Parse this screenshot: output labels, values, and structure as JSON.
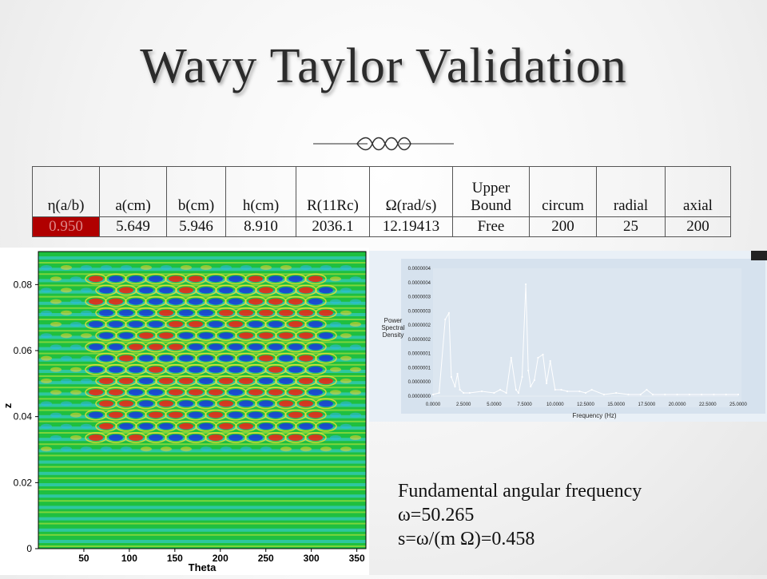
{
  "slide": {
    "title": "Wavy Taylor Validation"
  },
  "table": {
    "headers": [
      "η(a/b)",
      "a(cm)",
      "b(cm)",
      "h(cm)",
      "R(11Rc)",
      "Ω(rad/s)",
      "Upper Bound",
      "circum",
      "radial",
      "axial"
    ],
    "values": [
      "0.950",
      "5.649",
      "5.946",
      "8.910",
      "2036.1",
      "12.19413",
      "Free",
      "200",
      "25",
      "200"
    ],
    "highlight_color": "#b00000"
  },
  "contour_plot": {
    "xlabel": "Theta",
    "ylabel": "z",
    "xticks": [
      "50",
      "100",
      "150",
      "200",
      "250",
      "300",
      "350"
    ],
    "yticks": [
      "0",
      "0.02",
      "0.04",
      "0.06",
      "0.08"
    ]
  },
  "chart_data": {
    "type": "line",
    "title": "",
    "xlabel": "Frequency (Hz)",
    "ylabel": "Power Spectral Density",
    "xlim": [
      0,
      25
    ],
    "ylim": [
      0,
      4e-07
    ],
    "xticks": [
      "0.0000",
      "2.5000",
      "5.0000",
      "7.5000",
      "10.0000",
      "12.5000",
      "15.0000",
      "17.5000",
      "20.0000",
      "22.5000",
      "25.0000"
    ],
    "yticks": [
      "0.0000000",
      "0.0000000",
      "0.0000001",
      "0.0000001",
      "0.0000002",
      "0.0000002",
      "0.0000003",
      "0.0000003",
      "0.0000004",
      "0.0000004"
    ],
    "x": [
      0,
      0.5,
      1.0,
      1.3,
      1.5,
      1.8,
      2.0,
      2.2,
      2.5,
      3.0,
      4.0,
      5.0,
      5.5,
      6.0,
      6.4,
      6.8,
      7.0,
      7.3,
      7.6,
      7.8,
      8.0,
      8.3,
      8.6,
      9.0,
      9.3,
      9.6,
      10.0,
      10.5,
      11.0,
      12.0,
      12.5,
      13.0,
      14.0,
      15.0,
      16.0,
      17.0,
      17.5,
      18.0,
      19.0,
      20.0,
      21.0,
      22.0,
      23.0,
      24.0,
      25.0
    ],
    "y": [
      5e-09,
      1e-08,
      2.4e-07,
      2.6e-07,
      6e-08,
      3e-08,
      7e-08,
      2e-08,
      1e-08,
      1e-08,
      1.5e-08,
      1e-08,
      2e-08,
      1e-08,
      1.2e-07,
      2e-08,
      1e-08,
      6e-08,
      3.5e-07,
      8e-08,
      3e-08,
      5e-08,
      1.2e-07,
      1.3e-07,
      4e-08,
      1.1e-07,
      2e-08,
      2e-08,
      1.5e-08,
      1.5e-08,
      1e-08,
      2e-08,
      5e-09,
      1e-08,
      5e-09,
      5e-09,
      2e-08,
      5e-09,
      5e-09,
      5e-09,
      5e-09,
      5e-09,
      5e-09,
      5e-09,
      5e-09
    ],
    "series_color": "#ffffff",
    "background": "#2d4d96",
    "grid": false
  },
  "caption": {
    "line1": "Fundamental angular frequency",
    "line2": "ω=50.265",
    "line3": "s=ω/(m Ω)=0.458"
  },
  "colors": {
    "contour_bg": "#1fbf3f",
    "contour_band": "#2ec8c8"
  }
}
